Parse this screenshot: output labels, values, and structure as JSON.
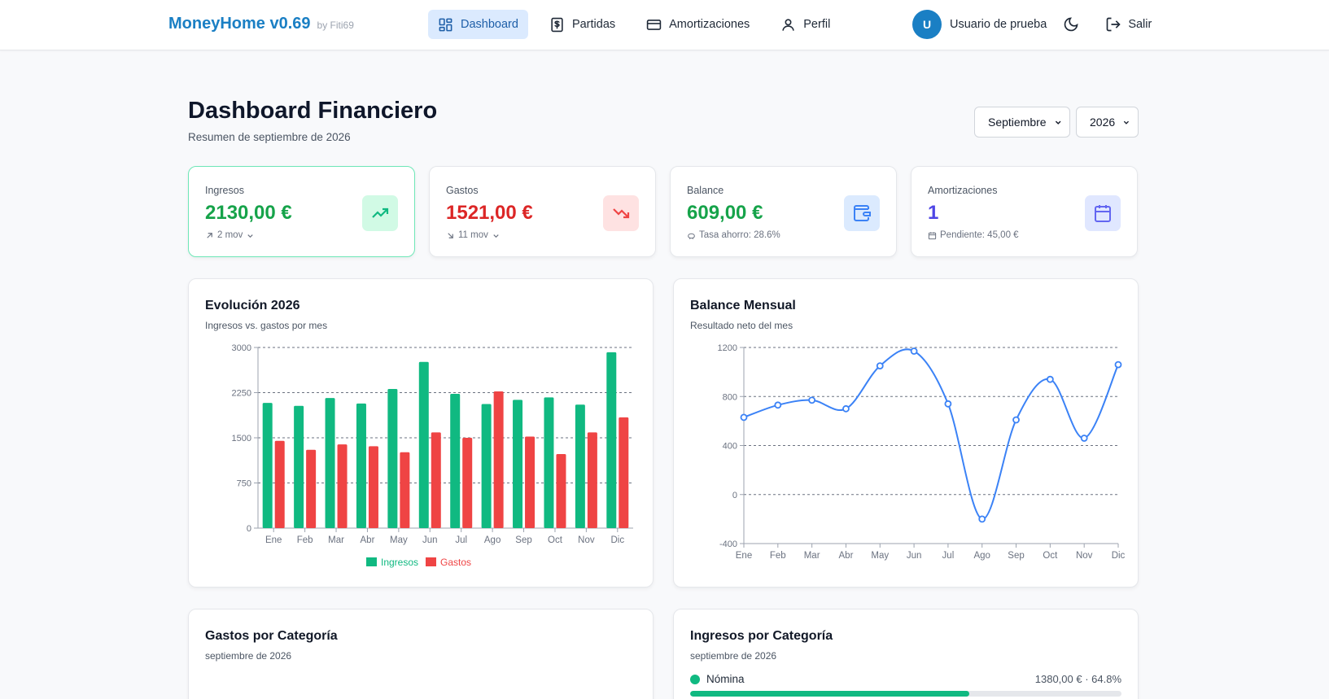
{
  "brand": {
    "title": "MoneyHome v0.69",
    "by": "by Fiti69"
  },
  "nav": [
    {
      "label": "Dashboard",
      "icon": "dashboard-icon",
      "active": true
    },
    {
      "label": "Partidas",
      "icon": "dollar-receipt-icon",
      "active": false
    },
    {
      "label": "Amortizaciones",
      "icon": "credit-card-icon",
      "active": false
    },
    {
      "label": "Perfil",
      "icon": "user-icon",
      "active": false
    }
  ],
  "user": {
    "initial": "U",
    "name": "Usuario de prueba",
    "logout_label": "Salir"
  },
  "header": {
    "title": "Dashboard Financiero",
    "subtitle": "Resumen de septiembre de 2026",
    "month": "Septiembre",
    "year": "2026"
  },
  "stats": [
    {
      "label": "Ingresos",
      "value": "2130,00 €",
      "sub": "2 mov",
      "color": "#16a34a",
      "icon": "trending-up-icon",
      "icon_bg": "#d1fae5",
      "icon_color": "#10b981"
    },
    {
      "label": "Gastos",
      "value": "1521,00 €",
      "sub": "11 mov",
      "color": "#dc2626",
      "icon": "trending-down-icon",
      "icon_bg": "#fee2e2",
      "icon_color": "#ef4444"
    },
    {
      "label": "Balance",
      "value": "609,00 €",
      "sub": "Tasa ahorro: 28.6%",
      "color": "#16a34a",
      "icon": "wallet-icon",
      "icon_bg": "#dbeafe",
      "icon_color": "#3b82f6"
    },
    {
      "label": "Amortizaciones",
      "value": "1",
      "sub": "Pendiente: 45,00 €",
      "color": "#4f46e5",
      "icon": "calendar-icon",
      "icon_bg": "#e0e7ff",
      "icon_color": "#6366f1"
    }
  ],
  "evolution": {
    "title": "Evolución 2026",
    "subtitle": "Ingresos vs. gastos por mes"
  },
  "balance": {
    "title": "Balance Mensual",
    "subtitle": "Resultado neto del mes"
  },
  "gastos_categoria": {
    "title": "Gastos por Categoría",
    "subtitle": "septiembre de 2026"
  },
  "ingresos_categoria": {
    "title": "Ingresos por Categoría",
    "subtitle": "septiembre de 2026",
    "items": [
      {
        "name": "Nómina",
        "value": "1380,00 € · 64.8%",
        "share": 0.648
      }
    ]
  },
  "chart_data": [
    {
      "type": "bar",
      "categories": [
        "Ene",
        "Feb",
        "Mar",
        "Abr",
        "May",
        "Jun",
        "Jul",
        "Ago",
        "Sep",
        "Oct",
        "Nov",
        "Dic"
      ],
      "series": [
        {
          "name": "Ingresos",
          "color": "#10b981",
          "values": [
            2080,
            2030,
            2160,
            2070,
            2310,
            2760,
            2230,
            2060,
            2130,
            2170,
            2050,
            2920
          ]
        },
        {
          "name": "Gastos",
          "color": "#ef4444",
          "values": [
            1450,
            1300,
            1390,
            1360,
            1260,
            1590,
            1500,
            2270,
            1521,
            1230,
            1590,
            1840
          ]
        }
      ],
      "yticks": [
        0,
        750,
        1500,
        2250,
        3000
      ],
      "ylim": [
        0,
        3000
      ],
      "grid": true,
      "legend": "bottom"
    },
    {
      "type": "line",
      "categories": [
        "Ene",
        "Feb",
        "Mar",
        "Abr",
        "May",
        "Jun",
        "Jul",
        "Ago",
        "Sep",
        "Oct",
        "Nov",
        "Dic"
      ],
      "series": [
        {
          "color": "#3b82f6",
          "values": [
            630,
            730,
            770,
            700,
            1050,
            1170,
            740,
            -200,
            609,
            940,
            460,
            1060
          ]
        }
      ],
      "yticks": [
        -400,
        0,
        400,
        800,
        1200
      ],
      "ylim": [
        -400,
        1200
      ],
      "grid": true
    }
  ]
}
